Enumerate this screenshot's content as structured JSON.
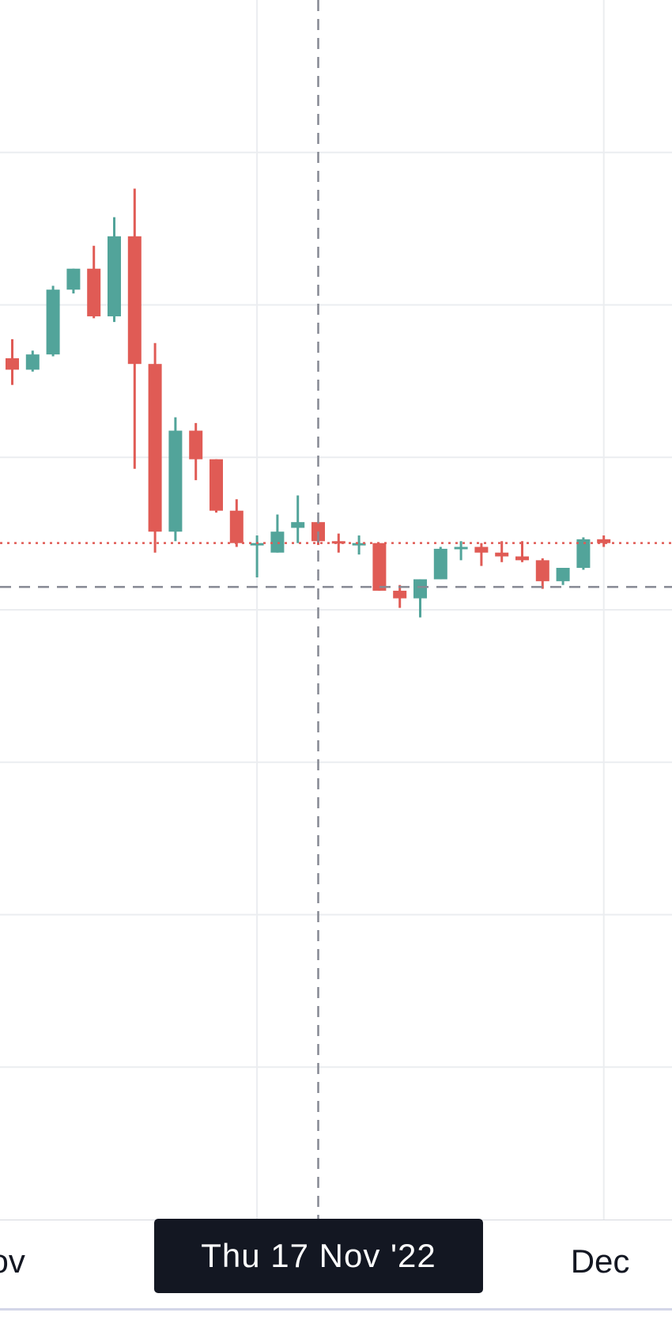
{
  "chart_data": {
    "type": "candlestick",
    "up_color": "#52a49a",
    "down_color": "#e05b55",
    "grid_color": "#ebedf0",
    "crosshair_color": "#868993",
    "last_price_line_color": "#e05b55",
    "grid": true,
    "y_range": [
      0,
      64
    ],
    "candles": [
      {
        "open": 45.2,
        "high": 46.2,
        "low": 43.8,
        "close": 44.6
      },
      {
        "open": 44.6,
        "high": 45.6,
        "low": 44.5,
        "close": 45.4
      },
      {
        "open": 45.4,
        "high": 49.0,
        "low": 45.3,
        "close": 48.8
      },
      {
        "open": 48.8,
        "high": 49.9,
        "low": 48.6,
        "close": 49.9
      },
      {
        "open": 49.9,
        "high": 51.1,
        "low": 47.3,
        "close": 47.4
      },
      {
        "open": 47.4,
        "high": 52.6,
        "low": 47.1,
        "close": 51.6
      },
      {
        "open": 51.6,
        "high": 54.1,
        "low": 39.4,
        "close": 44.9
      },
      {
        "open": 44.9,
        "high": 46.0,
        "low": 35.0,
        "close": 36.1
      },
      {
        "open": 36.1,
        "high": 42.1,
        "low": 35.6,
        "close": 41.4
      },
      {
        "open": 41.4,
        "high": 41.8,
        "low": 38.8,
        "close": 39.9
      },
      {
        "open": 39.9,
        "high": 39.9,
        "low": 37.1,
        "close": 37.2
      },
      {
        "open": 37.2,
        "high": 37.8,
        "low": 35.3,
        "close": 35.5
      },
      {
        "open": 35.5,
        "high": 35.9,
        "low": 33.7,
        "close": 35.5
      },
      {
        "open": 35.0,
        "high": 37.0,
        "low": 35.0,
        "close": 36.1
      },
      {
        "open": 36.3,
        "high": 38.0,
        "low": 35.5,
        "close": 36.6
      },
      {
        "open": 36.6,
        "high": 36.6,
        "low": 35.4,
        "close": 35.6
      },
      {
        "open": 35.6,
        "high": 36.0,
        "low": 35.0,
        "close": 35.5
      },
      {
        "open": 35.5,
        "high": 35.9,
        "low": 34.9,
        "close": 35.5
      },
      {
        "open": 35.5,
        "high": 35.5,
        "low": 33.0,
        "close": 33.0
      },
      {
        "open": 33.0,
        "high": 33.3,
        "low": 32.1,
        "close": 32.6
      },
      {
        "open": 32.6,
        "high": 33.6,
        "low": 31.6,
        "close": 33.6
      },
      {
        "open": 33.6,
        "high": 35.3,
        "low": 33.6,
        "close": 35.2
      },
      {
        "open": 35.2,
        "high": 35.6,
        "low": 34.6,
        "close": 35.3
      },
      {
        "open": 35.3,
        "high": 35.5,
        "low": 34.3,
        "close": 35.0
      },
      {
        "open": 35.0,
        "high": 35.6,
        "low": 34.5,
        "close": 34.8
      },
      {
        "open": 34.8,
        "high": 35.6,
        "low": 34.5,
        "close": 34.6
      },
      {
        "open": 34.6,
        "high": 34.7,
        "low": 33.1,
        "close": 33.5
      },
      {
        "open": 33.5,
        "high": 34.2,
        "low": 33.3,
        "close": 34.2
      },
      {
        "open": 34.2,
        "high": 35.8,
        "low": 34.1,
        "close": 35.7
      },
      {
        "open": 35.7,
        "high": 35.9,
        "low": 35.3,
        "close": 35.5
      }
    ],
    "last_price": 35.5,
    "crosshair": {
      "price": 33.2,
      "candle_index": 15
    },
    "x_ticks": [
      {
        "label": "ov",
        "candle_index": 0
      },
      {
        "label": "Dec",
        "candle_index": 29
      }
    ],
    "crosshair_date_label": "Thu 17 Nov '22"
  }
}
